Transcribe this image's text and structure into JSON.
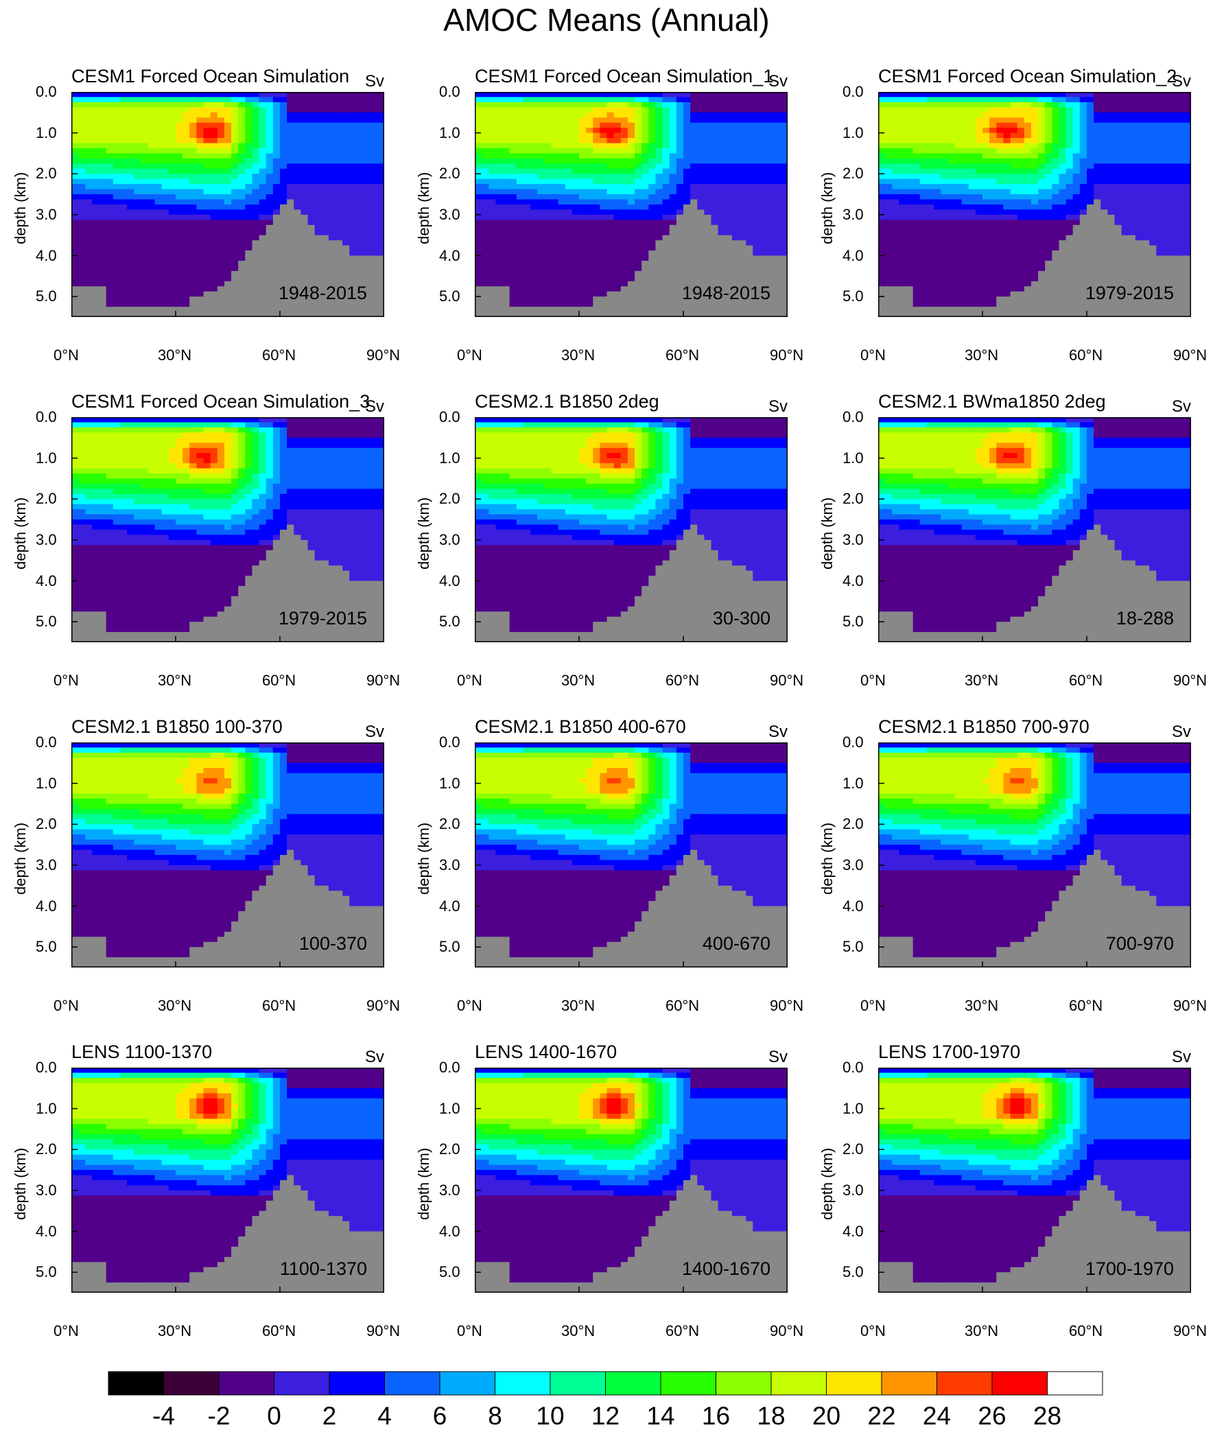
{
  "figure": {
    "title": "AMOC Means (Annual)"
  },
  "chart_data": {
    "type": "contour",
    "shared": {
      "xlabel": "",
      "ylabel": "depth (km)",
      "xlim": [
        0,
        90
      ],
      "ylim": [
        5.5,
        0.0
      ],
      "xticks": [
        "0°N",
        "30°N",
        "60°N",
        "90°N"
      ],
      "yticks": [
        "0.0",
        "1.0",
        "2.0",
        "3.0",
        "4.0",
        "5.0"
      ],
      "units": "Sv",
      "grid": false
    },
    "colorbar": {
      "labels": [
        "-4",
        "-2",
        "0",
        "2",
        "4",
        "6",
        "8",
        "10",
        "12",
        "14",
        "16",
        "18",
        "20",
        "22",
        "24",
        "26",
        "28"
      ],
      "colors": [
        "#000000",
        "#3c0038",
        "#52008a",
        "#3c1ede",
        "#0000ff",
        "#0a64ff",
        "#00aaff",
        "#00ffff",
        "#00ff96",
        "#00ff3c",
        "#28ff00",
        "#8cff00",
        "#c8ff00",
        "#ffe600",
        "#ff9600",
        "#ff3c00",
        "#ff0000",
        "#ffffff"
      ]
    },
    "panels": [
      {
        "title": "CESM1 Forced Ocean Simulation",
        "units": "Sv",
        "period": "1948-2015",
        "core_max": 25,
        "core_lat": 40
      },
      {
        "title": "CESM1 Forced Ocean Simulation_1",
        "units": "Sv",
        "period": "1948-2015",
        "core_max": 25,
        "core_lat": 39
      },
      {
        "title": "CESM1 Forced Ocean Simulation_2",
        "units": "Sv",
        "period": "1979-2015",
        "core_max": 25,
        "core_lat": 37
      },
      {
        "title": "CESM1 Forced Ocean Simulation_3",
        "units": "Sv",
        "period": "1979-2015",
        "core_max": 25,
        "core_lat": 38
      },
      {
        "title": "CESM2.1 B1850 2deg",
        "units": "Sv",
        "period": "30-300",
        "core_max": 24.5,
        "core_lat": 40
      },
      {
        "title": "CESM2.1 BWma1850 2deg",
        "units": "Sv",
        "period": "18-288",
        "core_max": 24.5,
        "core_lat": 38
      },
      {
        "title": "CESM2.1 B1850 100-370",
        "units": "Sv",
        "period": "100-370",
        "core_max": 22.5,
        "core_lat": 40
      },
      {
        "title": "CESM2.1 B1850 400-670",
        "units": "Sv",
        "period": "400-670",
        "core_max": 22.5,
        "core_lat": 40
      },
      {
        "title": "CESM2.1 B1850 700-970",
        "units": "Sv",
        "period": "700-970",
        "core_max": 22.5,
        "core_lat": 40
      },
      {
        "title": "LENS 1100-1370",
        "units": "Sv",
        "period": "1100-1370",
        "core_max": 25.5,
        "core_lat": 40
      },
      {
        "title": "LENS 1400-1670",
        "units": "Sv",
        "period": "1400-1670",
        "core_max": 25.5,
        "core_lat": 40
      },
      {
        "title": "LENS 1700-1970",
        "units": "Sv",
        "period": "1700-1970",
        "core_max": 25.5,
        "core_lat": 40
      }
    ]
  }
}
